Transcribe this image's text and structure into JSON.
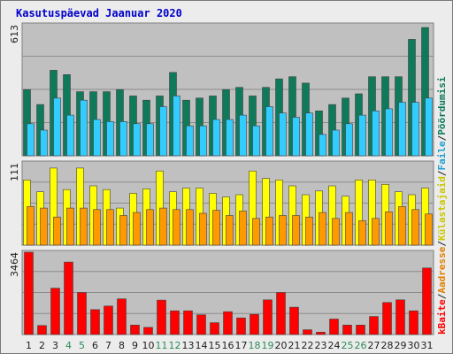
{
  "chart_data": {
    "type": "bar",
    "title": "Kasutuspäevad Jaanuar 2020",
    "categories": [
      "1",
      "2",
      "3",
      "4",
      "5",
      "6",
      "7",
      "8",
      "9",
      "10",
      "11",
      "12",
      "13",
      "14",
      "15",
      "16",
      "17",
      "18",
      "19",
      "20",
      "21",
      "22",
      "23",
      "24",
      "25",
      "26",
      "27",
      "28",
      "29",
      "30",
      "31"
    ],
    "weekend_days": [
      4,
      5,
      11,
      12,
      18,
      19,
      25,
      26
    ],
    "panels": [
      {
        "ymax_label": "613",
        "ylim": [
          0,
          613
        ],
        "series": [
          {
            "name": "Pöördumisi",
            "color": "#0f7a5a",
            "values": [
              310,
              240,
              400,
              380,
              300,
              300,
              300,
              310,
              280,
              260,
              280,
              390,
              260,
              270,
              280,
              310,
              320,
              280,
              320,
              360,
              370,
              340,
              210,
              240,
              270,
              290,
              370,
              370,
              370,
              545,
              600
            ]
          },
          {
            "name": "Faile",
            "color": "#33ccff",
            "values": [
              150,
              120,
              270,
              190,
              260,
              170,
              160,
              160,
              150,
              150,
              230,
              280,
              140,
              140,
              170,
              170,
              190,
              140,
              230,
              200,
              180,
              200,
              100,
              120,
              150,
              190,
              210,
              220,
              250,
              250,
              270
            ]
          }
        ]
      },
      {
        "ymax_label": "111",
        "ylim": [
          0,
          111
        ],
        "series": [
          {
            "name": "Külastajaid",
            "color": "#ffff00",
            "values": [
              88,
              72,
              104,
              75,
              104,
              80,
              75,
              50,
              70,
              76,
              100,
              72,
              77,
              77,
              70,
              65,
              68,
              100,
              90,
              88,
              80,
              68,
              73,
              80,
              66,
              88,
              88,
              82,
              72,
              68,
              77
            ]
          },
          {
            "name": "Aadresse",
            "color": "#ff9900",
            "values": [
              52,
              50,
              38,
              50,
              50,
              48,
              48,
              40,
              44,
              48,
              50,
              48,
              48,
              43,
              47,
              40,
              46,
              36,
              38,
              40,
              40,
              38,
              44,
              36,
              44,
              33,
              36,
              45,
              52,
              48,
              42
            ]
          }
        ]
      },
      {
        "ymax_label": "3464",
        "ylim": [
          0,
          3464
        ],
        "series": [
          {
            "name": "kBaite",
            "color": "#ff0000",
            "values": [
              3464,
              380,
              1950,
              3050,
              1770,
              1050,
              1200,
              1500,
              400,
              300,
              1450,
              1000,
              1000,
              830,
              500,
              960,
              700,
              850,
              1460,
              1770,
              1150,
              200,
              100,
              650,
              400,
              400,
              760,
              1350,
              1460,
              1000,
              2800
            ]
          }
        ]
      }
    ],
    "legend": [
      "kBaite",
      "Aadresse",
      "Külastajaid",
      "Faile",
      "Pöördumisi"
    ]
  },
  "colors": {
    "plot_bg": "#c0c0c0",
    "frame_bg": "#ececec",
    "weekday_label": "#202020",
    "weekend_label": "#2e8b57",
    "slash": "#202020"
  }
}
